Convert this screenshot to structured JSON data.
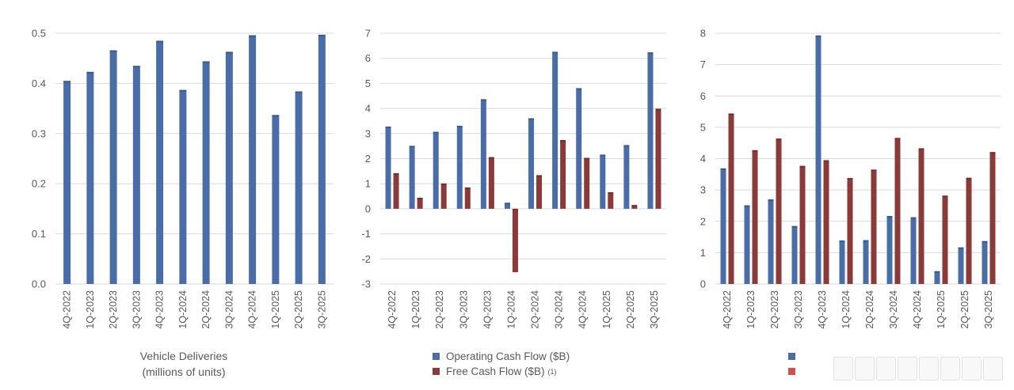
{
  "colors": {
    "blue": "#4a6da7",
    "red": "#8b3a3a",
    "grid": "#d9d9d9"
  },
  "chart_data": [
    {
      "type": "bar",
      "title": "",
      "xlabel": "Vehicle Deliveries (millions of units)",
      "ylabel": "",
      "categories": [
        "4Q-2022",
        "1Q-2023",
        "2Q-2023",
        "3Q-2023",
        "4Q-2023",
        "1Q-2024",
        "2Q-2024",
        "3Q-2024",
        "4Q-2024",
        "1Q-2025",
        "2Q-2025",
        "3Q-2025"
      ],
      "series": [
        {
          "name": "",
          "color": "#4a6da7",
          "values": [
            0.405,
            0.423,
            0.466,
            0.435,
            0.485,
            0.387,
            0.444,
            0.463,
            0.496,
            0.337,
            0.384,
            0.497
          ]
        }
      ],
      "ylim": [
        0,
        0.5
      ],
      "yticks": [
        "0.0",
        "0.1",
        "0.2",
        "0.3",
        "0.4",
        "0.5"
      ],
      "grid": true,
      "caption": [
        "Vehicle Deliveries",
        "(millions of units)"
      ]
    },
    {
      "type": "bar",
      "title": "",
      "xlabel": "",
      "ylabel": "",
      "categories": [
        "4Q-2022",
        "1Q-2023",
        "2Q-2023",
        "3Q-2023",
        "4Q-2023",
        "1Q-2024",
        "2Q-2024",
        "3Q-2024",
        "4Q-2024",
        "1Q-2025",
        "2Q-2025",
        "3Q-2025"
      ],
      "series": [
        {
          "name": "Operating Cash Flow ($B)",
          "color": "#4a6da7",
          "values": [
            3.28,
            2.51,
            3.07,
            3.31,
            4.37,
            0.24,
            3.61,
            6.26,
            4.81,
            2.16,
            2.54,
            6.24
          ]
        },
        {
          "name": "Free Cash Flow ($B)",
          "color": "#8b3a3a",
          "values": [
            1.42,
            0.44,
            1.01,
            0.85,
            2.06,
            -2.53,
            1.34,
            2.74,
            2.03,
            0.66,
            0.15,
            3.99
          ]
        }
      ],
      "ylim": [
        -3,
        7
      ],
      "yticks": [
        "-3",
        "-2",
        "-1",
        "0",
        "1",
        "2",
        "3",
        "4",
        "5",
        "6",
        "7"
      ],
      "grid": true,
      "legend_position": "bottom",
      "legend": [
        {
          "label": "Operating Cash Flow ($B)",
          "sup": ""
        },
        {
          "label": "Free Cash Flow ($B)",
          "sup": "(1)"
        }
      ]
    },
    {
      "type": "bar",
      "title": "",
      "xlabel": "",
      "ylabel": "",
      "categories": [
        "4Q-2022",
        "1Q-2023",
        "2Q-2023",
        "3Q-2023",
        "4Q-2023",
        "1Q-2024",
        "2Q-2024",
        "3Q-2024",
        "4Q-2024",
        "1Q-2025",
        "2Q-2025",
        "3Q-2025"
      ],
      "series": [
        {
          "name": "",
          "color": "#4a6da7",
          "values": [
            3.69,
            2.51,
            2.7,
            1.85,
            7.93,
            1.39,
            1.4,
            2.17,
            2.13,
            0.41,
            1.17,
            1.37
          ]
        },
        {
          "name": "",
          "color": "#8b3a3a",
          "values": [
            5.44,
            4.27,
            4.64,
            3.77,
            3.95,
            3.38,
            3.65,
            4.66,
            4.33,
            2.82,
            3.39,
            4.21
          ]
        }
      ],
      "ylim": [
        0,
        8
      ],
      "yticks": [
        "0",
        "1",
        "2",
        "3",
        "4",
        "5",
        "6",
        "7",
        "8"
      ],
      "grid": true,
      "legend_position": "bottom"
    }
  ]
}
